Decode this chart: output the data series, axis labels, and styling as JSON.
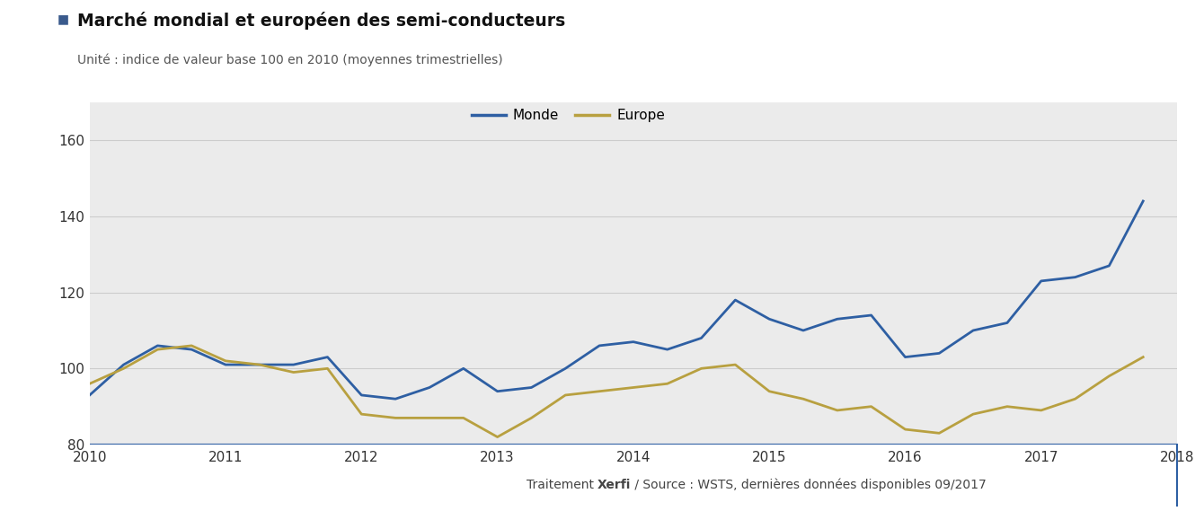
{
  "title": "Marché mondial et européen des semi-conducteurs",
  "subtitle": "Unité : indice de valeur base 100 en 2010 (moyennes trimestrielles)",
  "title_icon_color": "#3a5a8c",
  "background_color": "#ebebeb",
  "outer_background": "#ffffff",
  "monde_color": "#2e5fa3",
  "europe_color": "#b8a040",
  "xlim_min": 2010.0,
  "xlim_max": 2018.0,
  "ylim_min": 80,
  "ylim_max": 170,
  "yticks": [
    80,
    100,
    120,
    140,
    160
  ],
  "xticks": [
    2010,
    2011,
    2012,
    2013,
    2014,
    2015,
    2016,
    2017,
    2018
  ],
  "monde_x": [
    2010.0,
    2010.25,
    2010.5,
    2010.75,
    2011.0,
    2011.25,
    2011.5,
    2011.75,
    2012.0,
    2012.25,
    2012.5,
    2012.75,
    2013.0,
    2013.25,
    2013.5,
    2013.75,
    2014.0,
    2014.25,
    2014.5,
    2014.75,
    2015.0,
    2015.25,
    2015.5,
    2015.75,
    2016.0,
    2016.25,
    2016.5,
    2016.75,
    2017.0,
    2017.25,
    2017.5,
    2017.75
  ],
  "monde_y": [
    93,
    101,
    106,
    105,
    101,
    101,
    101,
    103,
    93,
    92,
    95,
    100,
    94,
    95,
    100,
    106,
    107,
    105,
    108,
    118,
    113,
    110,
    113,
    114,
    103,
    104,
    110,
    112,
    123,
    124,
    127,
    144
  ],
  "europe_x": [
    2010.0,
    2010.25,
    2010.5,
    2010.75,
    2011.0,
    2011.25,
    2011.5,
    2011.75,
    2012.0,
    2012.25,
    2012.5,
    2012.75,
    2013.0,
    2013.25,
    2013.5,
    2013.75,
    2014.0,
    2014.25,
    2014.5,
    2014.75,
    2015.0,
    2015.25,
    2015.5,
    2015.75,
    2016.0,
    2016.25,
    2016.5,
    2016.75,
    2017.0,
    2017.25,
    2017.5,
    2017.75
  ],
  "europe_y": [
    96,
    100,
    105,
    106,
    102,
    101,
    99,
    100,
    88,
    87,
    87,
    87,
    82,
    87,
    93,
    94,
    95,
    96,
    100,
    101,
    94,
    92,
    89,
    90,
    84,
    83,
    88,
    90,
    89,
    92,
    98,
    103
  ],
  "legend_monde": "Monde",
  "legend_europe": "Europe",
  "grid_color": "#cccccc",
  "hline_color": "#2e5fa3",
  "hline_y": 80,
  "footer_text1": "Traitement ",
  "footer_text2": "Xerfi",
  "footer_text3": " / Source : WSTS, dernières données disponibles 09/2017"
}
